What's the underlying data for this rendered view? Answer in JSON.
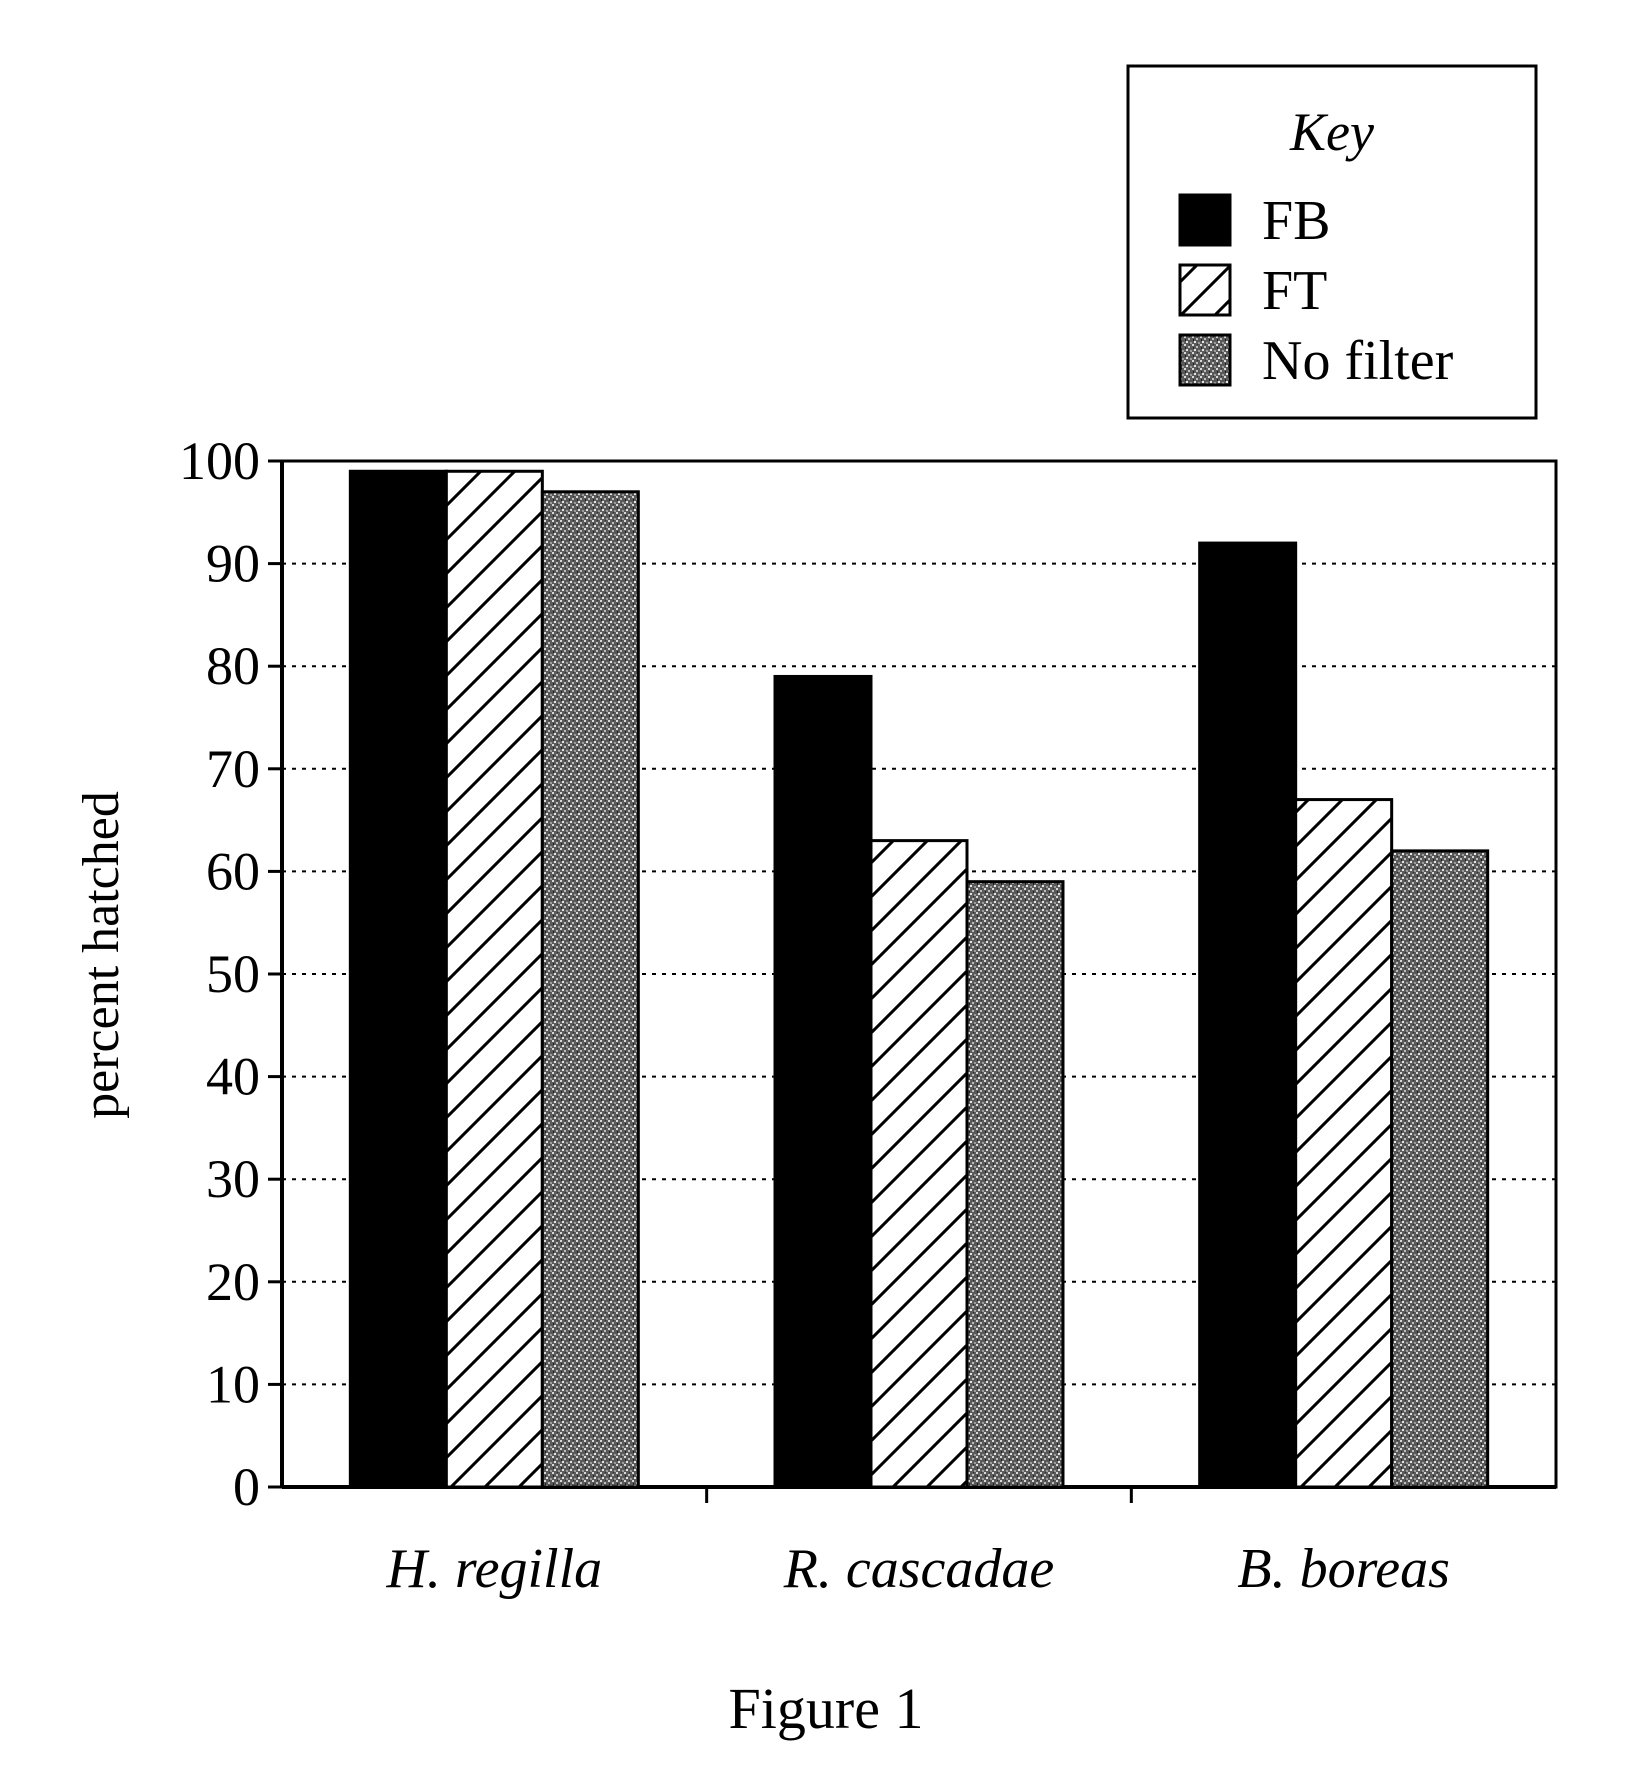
{
  "chart_data": {
    "type": "bar",
    "title": "",
    "caption": "Figure 1",
    "xlabel": "",
    "ylabel": "percent hatched",
    "ylim": [
      0,
      100
    ],
    "yticks": [
      0,
      10,
      20,
      30,
      40,
      50,
      60,
      70,
      80,
      90,
      100
    ],
    "grid": "horizontal-dotted",
    "legend": {
      "title": "Key",
      "placement": "top-right"
    },
    "categories": [
      "H. regilla",
      "R. cascadae",
      "B. boreas"
    ],
    "series": [
      {
        "name": "FB",
        "pattern": "solid",
        "color": "#000000",
        "values": [
          99,
          79,
          92
        ]
      },
      {
        "name": "FT",
        "pattern": "hatched",
        "color": "#ffffff",
        "values": [
          99,
          63,
          67
        ]
      },
      {
        "name": "No filter",
        "pattern": "stippled",
        "color": "#6e6e6e",
        "values": [
          97,
          59,
          62
        ]
      }
    ]
  }
}
